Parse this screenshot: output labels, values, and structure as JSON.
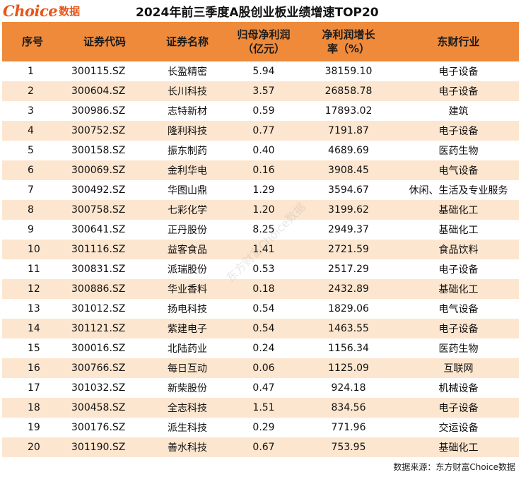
{
  "brand": {
    "logo_text": "Choice",
    "logo_sub": "数据"
  },
  "title": "2024年前三季度A股创业板业绩增速TOP20",
  "table": {
    "headers": {
      "idx": "序号",
      "code": "证券代码",
      "name": "证券名称",
      "profit": "归母净利润\n（亿元）",
      "growth": "净利润增长\n率（%）",
      "industry": "东财行业"
    },
    "rows": [
      {
        "idx": "1",
        "code": "300115.SZ",
        "name": "长盈精密",
        "profit": "5.94",
        "growth": "38159.10",
        "industry": "电子设备"
      },
      {
        "idx": "2",
        "code": "300604.SZ",
        "name": "长川科技",
        "profit": "3.57",
        "growth": "26858.78",
        "industry": "电子设备"
      },
      {
        "idx": "3",
        "code": "300986.SZ",
        "name": "志特新材",
        "profit": "0.59",
        "growth": "17893.02",
        "industry": "建筑"
      },
      {
        "idx": "4",
        "code": "300752.SZ",
        "name": "隆利科技",
        "profit": "0.77",
        "growth": "7191.87",
        "industry": "电子设备"
      },
      {
        "idx": "5",
        "code": "300158.SZ",
        "name": "振东制药",
        "profit": "0.40",
        "growth": "4689.69",
        "industry": "医药生物"
      },
      {
        "idx": "6",
        "code": "300069.SZ",
        "name": "金利华电",
        "profit": "0.16",
        "growth": "3908.45",
        "industry": "电气设备"
      },
      {
        "idx": "7",
        "code": "300492.SZ",
        "name": "华图山鼎",
        "profit": "1.29",
        "growth": "3594.67",
        "industry": "休闲、生活及专业服务"
      },
      {
        "idx": "8",
        "code": "300758.SZ",
        "name": "七彩化学",
        "profit": "1.20",
        "growth": "3199.62",
        "industry": "基础化工"
      },
      {
        "idx": "9",
        "code": "300641.SZ",
        "name": "正丹股份",
        "profit": "8.25",
        "growth": "2949.37",
        "industry": "基础化工"
      },
      {
        "idx": "10",
        "code": "301116.SZ",
        "name": "益客食品",
        "profit": "1.41",
        "growth": "2721.59",
        "industry": "食品饮料"
      },
      {
        "idx": "11",
        "code": "300831.SZ",
        "name": "派瑞股份",
        "profit": "0.53",
        "growth": "2517.29",
        "industry": "电子设备"
      },
      {
        "idx": "12",
        "code": "300886.SZ",
        "name": "华业香料",
        "profit": "0.18",
        "growth": "2432.89",
        "industry": "基础化工"
      },
      {
        "idx": "13",
        "code": "301012.SZ",
        "name": "扬电科技",
        "profit": "0.54",
        "growth": "1829.06",
        "industry": "电气设备"
      },
      {
        "idx": "14",
        "code": "301121.SZ",
        "name": "紫建电子",
        "profit": "0.54",
        "growth": "1463.55",
        "industry": "电子设备"
      },
      {
        "idx": "15",
        "code": "300016.SZ",
        "name": "北陆药业",
        "profit": "0.24",
        "growth": "1156.34",
        "industry": "医药生物"
      },
      {
        "idx": "16",
        "code": "300766.SZ",
        "name": "每日互动",
        "profit": "0.06",
        "growth": "1125.09",
        "industry": "互联网"
      },
      {
        "idx": "17",
        "code": "301032.SZ",
        "name": "新柴股份",
        "profit": "0.47",
        "growth": "924.18",
        "industry": "机械设备"
      },
      {
        "idx": "18",
        "code": "300458.SZ",
        "name": "全志科技",
        "profit": "1.51",
        "growth": "834.56",
        "industry": "电子设备"
      },
      {
        "idx": "19",
        "code": "300176.SZ",
        "name": "派生科技",
        "profit": "0.29",
        "growth": "771.96",
        "industry": "交运设备"
      },
      {
        "idx": "20",
        "code": "301190.SZ",
        "name": "善水科技",
        "profit": "0.67",
        "growth": "753.95",
        "industry": "基础化工"
      }
    ]
  },
  "footer": {
    "source": "数据来源：东方财富Choice数据"
  },
  "colors": {
    "accent": "#e8541a",
    "header_bg": "#ef8a3b",
    "stripe": "#fde6cf"
  }
}
